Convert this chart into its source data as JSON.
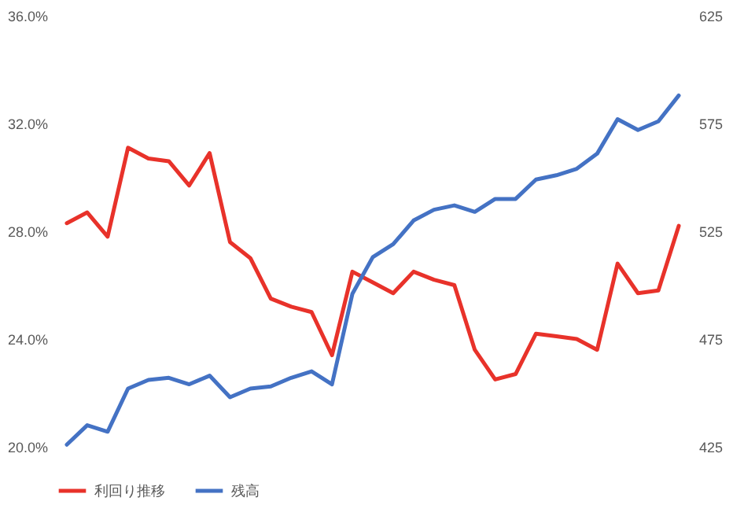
{
  "chart_data": {
    "type": "line",
    "categories": [
      null,
      null,
      null,
      null,
      null,
      null,
      null,
      null,
      null,
      null,
      null,
      null,
      null,
      null,
      null,
      null,
      null,
      null,
      null,
      null,
      null,
      null,
      null,
      null,
      null,
      null,
      null,
      null,
      null,
      null,
      null
    ],
    "ylim": [
      20,
      36
    ],
    "yticks": [
      {
        "value": 20,
        "label": "20.0%"
      },
      {
        "value": 24,
        "label": "24.0%"
      },
      {
        "value": 28,
        "label": "28.0%"
      },
      {
        "value": 32,
        "label": "32.0%"
      },
      {
        "value": 36,
        "label": "36.0%"
      }
    ],
    "y2lim": [
      425,
      625
    ],
    "y2ticks": [
      425,
      475,
      525,
      575,
      625
    ],
    "series": [
      {
        "name": "利回り推移",
        "color": "#e8322a",
        "values": [
          28.3,
          28.7,
          27.8,
          31.1,
          30.7,
          30.6,
          29.7,
          30.9,
          27.6,
          27.0,
          25.5,
          25.2,
          25.0,
          23.4,
          26.5,
          26.1,
          25.7,
          26.5,
          26.2,
          26.0,
          23.6,
          22.5,
          22.7,
          24.2,
          24.1,
          24.0,
          23.6,
          26.8,
          25.7,
          25.8,
          28.2
        ]
      },
      {
        "name": "残高",
        "color": "#4472c4",
        "axis": "y2",
        "values": [
          426,
          435,
          432,
          452,
          456,
          457,
          454,
          458,
          448,
          452,
          453,
          457,
          460,
          454,
          496,
          513,
          519,
          530,
          535,
          537,
          534,
          540,
          540,
          549,
          551,
          554,
          561,
          577,
          572,
          576,
          588
        ]
      }
    ],
    "legend": "bottom",
    "grid": false,
    "line_style": "solid"
  }
}
